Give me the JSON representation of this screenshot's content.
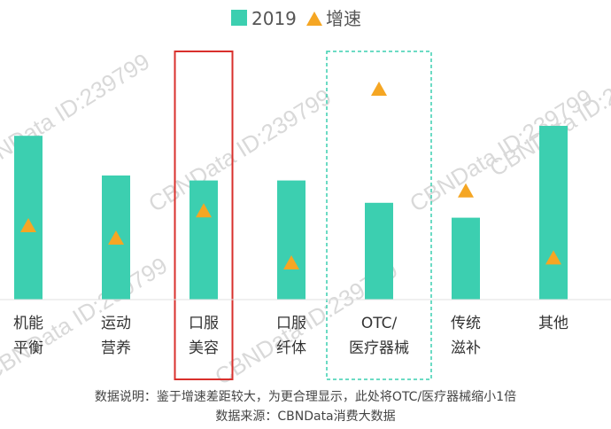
{
  "watermark": "CBNData ID:239799",
  "chart_data": {
    "type": "bar",
    "categories": [
      [
        "机能",
        "平衡"
      ],
      [
        "运动",
        "营养"
      ],
      [
        "口服",
        "美容"
      ],
      [
        "口服",
        "纤体"
      ],
      [
        "OTC/",
        "医疗器械"
      ],
      [
        "传统",
        "滋补"
      ],
      [
        "其他",
        ""
      ]
    ],
    "series": [
      {
        "name": "2019",
        "type": "bar",
        "color": "#3ccfb0",
        "values": [
          66,
          50,
          48,
          48,
          39,
          33,
          70
        ]
      },
      {
        "name": "增速",
        "type": "marker",
        "color": "#f5a623",
        "values": [
          30,
          25,
          36,
          15,
          85,
          44,
          17
        ]
      }
    ],
    "ylim": [
      0,
      100
    ],
    "highlights": [
      {
        "category_index": 2,
        "style": "solid",
        "color": "#d9302c"
      },
      {
        "category_index": 4,
        "style": "dashed",
        "color": "#3ccfb0"
      }
    ],
    "legend_position": "top-center",
    "grid": false
  },
  "notes": [
    "数据说明：鉴于增速差距较大，为更合理显示，此处将OTC/医疗器械缩小1倍",
    "数据来源：CBNData消费大数据"
  ]
}
